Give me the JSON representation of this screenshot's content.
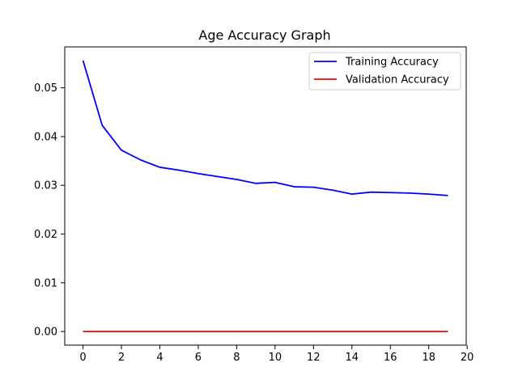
{
  "chart_data": {
    "type": "line",
    "title": "Age Accuracy Graph",
    "xlabel": "",
    "ylabel": "",
    "xlim": [
      -0.95,
      19.95
    ],
    "ylim": [
      -0.0028,
      0.0584
    ],
    "xticks": [
      0,
      2,
      4,
      6,
      8,
      10,
      12,
      14,
      16,
      18,
      20
    ],
    "xtick_labels": [
      "0",
      "2",
      "4",
      "6",
      "8",
      "10",
      "12",
      "14",
      "16",
      "18",
      "20"
    ],
    "yticks": [
      0.0,
      0.01,
      0.02,
      0.03,
      0.04,
      0.05
    ],
    "ytick_labels": [
      "0.00",
      "0.01",
      "0.02",
      "0.03",
      "0.04",
      "0.05"
    ],
    "grid": false,
    "legend_position": "top-right",
    "x": [
      0,
      1,
      2,
      3,
      4,
      5,
      6,
      7,
      8,
      9,
      10,
      11,
      12,
      13,
      14,
      15,
      16,
      17,
      18,
      19
    ],
    "series": [
      {
        "name": "Training Accuracy",
        "color": "#0000ff",
        "values": [
          0.0556,
          0.0423,
          0.0372,
          0.0352,
          0.0337,
          0.0331,
          0.0324,
          0.0318,
          0.0312,
          0.0304,
          0.0306,
          0.0297,
          0.0296,
          0.029,
          0.0282,
          0.0286,
          0.0285,
          0.0284,
          0.0282,
          0.0279
        ]
      },
      {
        "name": "Validation Accuracy",
        "color": "#ff0000",
        "values": [
          0,
          0,
          0,
          0,
          0,
          0,
          0,
          0,
          0,
          0,
          0,
          0,
          0,
          0,
          0,
          0,
          0,
          0,
          0,
          0
        ]
      }
    ]
  }
}
